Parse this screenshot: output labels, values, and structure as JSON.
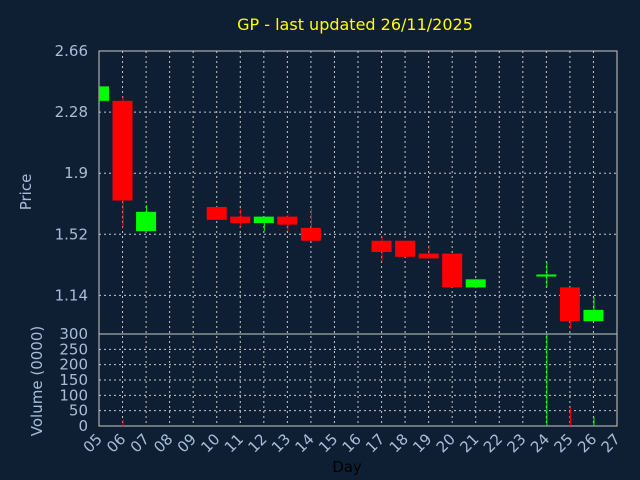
{
  "chart_data": {
    "type": "candlestick",
    "title": "GP - last updated 26/11/2025",
    "xlabel": "Day",
    "ylabel_price": "Price",
    "ylabel_volume": "Volume (0000)",
    "x_ticks": [
      "05",
      "06",
      "07",
      "08",
      "09",
      "10",
      "11",
      "12",
      "13",
      "14",
      "15",
      "16",
      "17",
      "18",
      "19",
      "20",
      "21",
      "22",
      "23",
      "24",
      "25",
      "26",
      "27"
    ],
    "price_ticks": [
      "2.66",
      "2.28",
      "1.9",
      "1.52",
      "1.14"
    ],
    "price_ylim": [
      0.9,
      2.66
    ],
    "volume_ticks": [
      "300",
      "250",
      "200",
      "150",
      "100",
      "50",
      "0"
    ],
    "volume_ylim": [
      0,
      300
    ],
    "grid": true,
    "colors": {
      "up": "#00ff00",
      "down": "#ff0000",
      "grid": "#c8c8c8",
      "frame": "#c8c8c8",
      "plot_bg": "#0f1f33",
      "title": "#ffff00",
      "text": "#a9bdd8"
    },
    "candles": [
      {
        "day": "05",
        "open": 2.35,
        "close": 2.44,
        "high": 2.44,
        "low": 2.35,
        "volume": 0
      },
      {
        "day": "06",
        "open": 2.35,
        "close": 1.73,
        "high": 2.38,
        "low": 1.56,
        "volume": 20
      },
      {
        "day": "07",
        "open": 1.54,
        "close": 1.66,
        "high": 1.7,
        "low": 1.54,
        "volume": 0
      },
      {
        "day": "10",
        "open": 1.69,
        "close": 1.61,
        "high": 1.69,
        "low": 1.61,
        "volume": 0
      },
      {
        "day": "11",
        "open": 1.63,
        "close": 1.59,
        "high": 1.68,
        "low": 1.56,
        "volume": 0
      },
      {
        "day": "12",
        "open": 1.59,
        "close": 1.63,
        "high": 1.63,
        "low": 1.54,
        "volume": 0
      },
      {
        "day": "13",
        "open": 1.63,
        "close": 1.58,
        "high": 1.64,
        "low": 1.54,
        "volume": 0
      },
      {
        "day": "14",
        "open": 1.56,
        "close": 1.48,
        "high": 1.68,
        "low": 1.48,
        "volume": 0
      },
      {
        "day": "17",
        "open": 1.48,
        "close": 1.41,
        "high": 1.51,
        "low": 1.35,
        "volume": 0
      },
      {
        "day": "18",
        "open": 1.48,
        "close": 1.38,
        "high": 1.48,
        "low": 1.38,
        "volume": 0
      },
      {
        "day": "19",
        "open": 1.4,
        "close": 1.37,
        "high": 1.45,
        "low": 1.37,
        "volume": 0
      },
      {
        "day": "20",
        "open": 1.4,
        "close": 1.19,
        "high": 1.4,
        "low": 1.19,
        "volume": 0
      },
      {
        "day": "21",
        "open": 1.19,
        "close": 1.24,
        "high": 1.24,
        "low": 1.19,
        "volume": 0
      },
      {
        "day": "24",
        "open": 1.26,
        "close": 1.27,
        "high": 1.35,
        "low": 1.19,
        "volume": 300
      },
      {
        "day": "25",
        "open": 1.19,
        "close": 0.98,
        "high": 1.19,
        "low": 0.93,
        "volume": 60
      },
      {
        "day": "26",
        "open": 0.98,
        "close": 1.05,
        "high": 1.13,
        "low": 0.98,
        "volume": 30
      }
    ]
  }
}
